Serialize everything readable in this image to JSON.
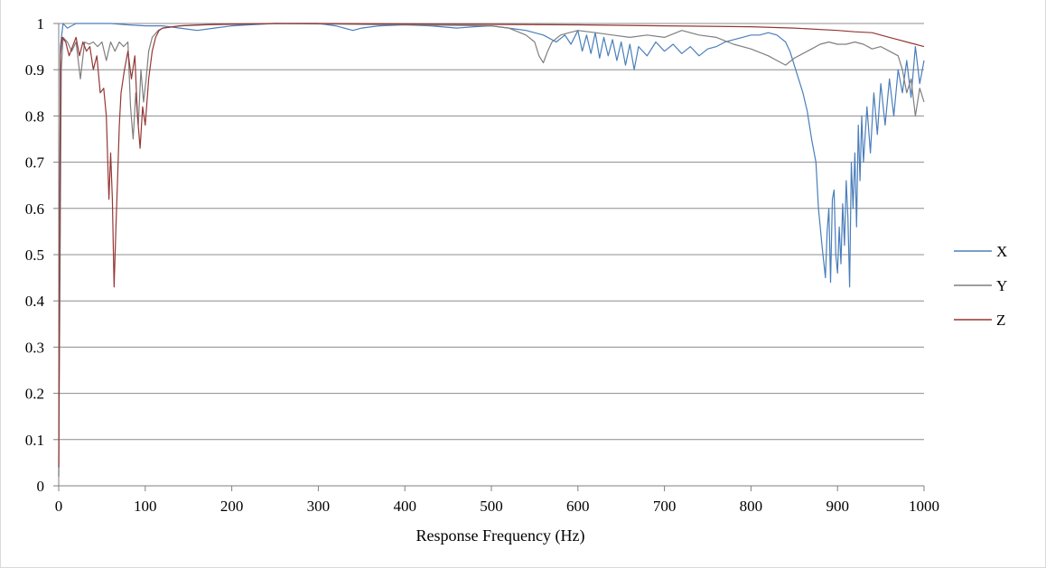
{
  "chart_data": {
    "type": "line",
    "title": "",
    "xlabel": "Response Frequency (Hz)",
    "ylabel": "",
    "xlim": [
      0,
      1000
    ],
    "ylim": [
      0,
      1
    ],
    "x_ticks": [
      0,
      100,
      200,
      300,
      400,
      500,
      600,
      700,
      800,
      900,
      1000
    ],
    "y_ticks": [
      0,
      0.1,
      0.2,
      0.3,
      0.4,
      0.5,
      0.6,
      0.7,
      0.8,
      0.9,
      1
    ],
    "y_tick_labels": [
      "0",
      "0.1",
      "0.2",
      "0.3",
      "0.4",
      "0.5",
      "0.6",
      "0.7",
      "0.8",
      "0.9",
      "1"
    ],
    "grid": "horizontal",
    "legend_position": "right",
    "series": [
      {
        "name": "X",
        "color": "#4a7ebb",
        "points": [
          [
            0,
            0.02
          ],
          [
            2,
            0.95
          ],
          [
            5,
            1.0
          ],
          [
            10,
            0.99
          ],
          [
            20,
            1.0
          ],
          [
            40,
            1.0
          ],
          [
            60,
            1.0
          ],
          [
            80,
            0.997
          ],
          [
            100,
            0.995
          ],
          [
            120,
            0.995
          ],
          [
            140,
            0.99
          ],
          [
            160,
            0.985
          ],
          [
            180,
            0.99
          ],
          [
            200,
            0.995
          ],
          [
            220,
            0.997
          ],
          [
            250,
            1.0
          ],
          [
            280,
            1.0
          ],
          [
            300,
            1.0
          ],
          [
            320,
            0.995
          ],
          [
            340,
            0.985
          ],
          [
            350,
            0.99
          ],
          [
            370,
            0.995
          ],
          [
            400,
            0.997
          ],
          [
            430,
            0.995
          ],
          [
            460,
            0.99
          ],
          [
            480,
            0.993
          ],
          [
            500,
            0.995
          ],
          [
            520,
            0.99
          ],
          [
            540,
            0.985
          ],
          [
            560,
            0.975
          ],
          [
            575,
            0.96
          ],
          [
            585,
            0.975
          ],
          [
            592,
            0.955
          ],
          [
            600,
            0.985
          ],
          [
            605,
            0.94
          ],
          [
            610,
            0.975
          ],
          [
            615,
            0.935
          ],
          [
            620,
            0.98
          ],
          [
            625,
            0.925
          ],
          [
            630,
            0.97
          ],
          [
            635,
            0.93
          ],
          [
            640,
            0.965
          ],
          [
            645,
            0.92
          ],
          [
            650,
            0.96
          ],
          [
            655,
            0.91
          ],
          [
            660,
            0.955
          ],
          [
            665,
            0.9
          ],
          [
            670,
            0.95
          ],
          [
            680,
            0.93
          ],
          [
            690,
            0.96
          ],
          [
            700,
            0.94
          ],
          [
            710,
            0.955
          ],
          [
            720,
            0.935
          ],
          [
            730,
            0.95
          ],
          [
            740,
            0.93
          ],
          [
            750,
            0.945
          ],
          [
            760,
            0.95
          ],
          [
            770,
            0.96
          ],
          [
            780,
            0.965
          ],
          [
            790,
            0.97
          ],
          [
            800,
            0.975
          ],
          [
            810,
            0.975
          ],
          [
            820,
            0.98
          ],
          [
            830,
            0.975
          ],
          [
            840,
            0.96
          ],
          [
            845,
            0.94
          ],
          [
            850,
            0.91
          ],
          [
            855,
            0.88
          ],
          [
            860,
            0.85
          ],
          [
            865,
            0.81
          ],
          [
            870,
            0.75
          ],
          [
            875,
            0.7
          ],
          [
            878,
            0.6
          ],
          [
            882,
            0.52
          ],
          [
            886,
            0.45
          ],
          [
            888,
            0.55
          ],
          [
            890,
            0.6
          ],
          [
            892,
            0.44
          ],
          [
            894,
            0.62
          ],
          [
            896,
            0.64
          ],
          [
            898,
            0.5
          ],
          [
            900,
            0.46
          ],
          [
            902,
            0.56
          ],
          [
            904,
            0.48
          ],
          [
            906,
            0.61
          ],
          [
            908,
            0.52
          ],
          [
            910,
            0.66
          ],
          [
            912,
            0.58
          ],
          [
            914,
            0.43
          ],
          [
            916,
            0.7
          ],
          [
            918,
            0.6
          ],
          [
            920,
            0.72
          ],
          [
            922,
            0.56
          ],
          [
            924,
            0.78
          ],
          [
            926,
            0.66
          ],
          [
            928,
            0.8
          ],
          [
            930,
            0.7
          ],
          [
            934,
            0.82
          ],
          [
            938,
            0.72
          ],
          [
            942,
            0.85
          ],
          [
            946,
            0.76
          ],
          [
            950,
            0.87
          ],
          [
            955,
            0.78
          ],
          [
            960,
            0.88
          ],
          [
            965,
            0.8
          ],
          [
            970,
            0.9
          ],
          [
            975,
            0.85
          ],
          [
            980,
            0.92
          ],
          [
            985,
            0.84
          ],
          [
            990,
            0.95
          ],
          [
            995,
            0.87
          ],
          [
            1000,
            0.92
          ]
        ]
      },
      {
        "name": "Y",
        "color": "#7f7f7f",
        "points": [
          [
            0,
            0.02
          ],
          [
            3,
            0.9
          ],
          [
            5,
            0.97
          ],
          [
            10,
            0.96
          ],
          [
            15,
            0.94
          ],
          [
            20,
            0.96
          ],
          [
            25,
            0.88
          ],
          [
            30,
            0.96
          ],
          [
            35,
            0.955
          ],
          [
            40,
            0.96
          ],
          [
            45,
            0.95
          ],
          [
            50,
            0.96
          ],
          [
            55,
            0.92
          ],
          [
            60,
            0.96
          ],
          [
            65,
            0.94
          ],
          [
            70,
            0.96
          ],
          [
            75,
            0.95
          ],
          [
            80,
            0.96
          ],
          [
            83,
            0.82
          ],
          [
            86,
            0.75
          ],
          [
            89,
            0.85
          ],
          [
            92,
            0.78
          ],
          [
            95,
            0.9
          ],
          [
            98,
            0.83
          ],
          [
            101,
            0.88
          ],
          [
            104,
            0.94
          ],
          [
            108,
            0.97
          ],
          [
            115,
            0.985
          ],
          [
            120,
            0.99
          ],
          [
            140,
            0.995
          ],
          [
            160,
            0.997
          ],
          [
            200,
            0.998
          ],
          [
            250,
            1.0
          ],
          [
            300,
            0.999
          ],
          [
            350,
            0.998
          ],
          [
            400,
            0.997
          ],
          [
            450,
            0.996
          ],
          [
            500,
            0.995
          ],
          [
            520,
            0.99
          ],
          [
            540,
            0.975
          ],
          [
            550,
            0.96
          ],
          [
            555,
            0.93
          ],
          [
            560,
            0.915
          ],
          [
            565,
            0.94
          ],
          [
            570,
            0.96
          ],
          [
            580,
            0.975
          ],
          [
            590,
            0.98
          ],
          [
            600,
            0.985
          ],
          [
            620,
            0.98
          ],
          [
            640,
            0.975
          ],
          [
            660,
            0.97
          ],
          [
            680,
            0.975
          ],
          [
            700,
            0.97
          ],
          [
            720,
            0.985
          ],
          [
            740,
            0.975
          ],
          [
            760,
            0.97
          ],
          [
            780,
            0.955
          ],
          [
            800,
            0.945
          ],
          [
            820,
            0.93
          ],
          [
            830,
            0.92
          ],
          [
            840,
            0.91
          ],
          [
            850,
            0.925
          ],
          [
            860,
            0.935
          ],
          [
            870,
            0.945
          ],
          [
            880,
            0.955
          ],
          [
            890,
            0.96
          ],
          [
            900,
            0.955
          ],
          [
            910,
            0.955
          ],
          [
            920,
            0.96
          ],
          [
            930,
            0.955
          ],
          [
            940,
            0.945
          ],
          [
            950,
            0.95
          ],
          [
            960,
            0.94
          ],
          [
            970,
            0.93
          ],
          [
            975,
            0.9
          ],
          [
            980,
            0.85
          ],
          [
            985,
            0.88
          ],
          [
            990,
            0.8
          ],
          [
            995,
            0.86
          ],
          [
            1000,
            0.83
          ]
        ]
      },
      {
        "name": "Z",
        "color": "#953735",
        "points": [
          [
            0,
            0.04
          ],
          [
            2,
            0.93
          ],
          [
            4,
            0.97
          ],
          [
            8,
            0.96
          ],
          [
            12,
            0.93
          ],
          [
            16,
            0.95
          ],
          [
            20,
            0.97
          ],
          [
            24,
            0.93
          ],
          [
            28,
            0.96
          ],
          [
            32,
            0.94
          ],
          [
            36,
            0.95
          ],
          [
            40,
            0.9
          ],
          [
            44,
            0.93
          ],
          [
            48,
            0.85
          ],
          [
            52,
            0.86
          ],
          [
            55,
            0.8
          ],
          [
            58,
            0.62
          ],
          [
            60,
            0.72
          ],
          [
            62,
            0.62
          ],
          [
            64,
            0.43
          ],
          [
            66,
            0.55
          ],
          [
            68,
            0.66
          ],
          [
            70,
            0.78
          ],
          [
            72,
            0.85
          ],
          [
            76,
            0.9
          ],
          [
            80,
            0.94
          ],
          [
            84,
            0.88
          ],
          [
            88,
            0.93
          ],
          [
            91,
            0.8
          ],
          [
            94,
            0.73
          ],
          [
            97,
            0.82
          ],
          [
            100,
            0.78
          ],
          [
            104,
            0.88
          ],
          [
            108,
            0.94
          ],
          [
            112,
            0.97
          ],
          [
            116,
            0.985
          ],
          [
            120,
            0.99
          ],
          [
            140,
            0.995
          ],
          [
            180,
            0.998
          ],
          [
            250,
            1.0
          ],
          [
            300,
            1.0
          ],
          [
            400,
            0.999
          ],
          [
            500,
            0.998
          ],
          [
            600,
            0.997
          ],
          [
            700,
            0.995
          ],
          [
            800,
            0.993
          ],
          [
            850,
            0.99
          ],
          [
            900,
            0.985
          ],
          [
            920,
            0.982
          ],
          [
            940,
            0.98
          ],
          [
            950,
            0.975
          ],
          [
            960,
            0.97
          ],
          [
            970,
            0.965
          ],
          [
            980,
            0.96
          ],
          [
            990,
            0.955
          ],
          [
            1000,
            0.95
          ]
        ]
      }
    ]
  }
}
